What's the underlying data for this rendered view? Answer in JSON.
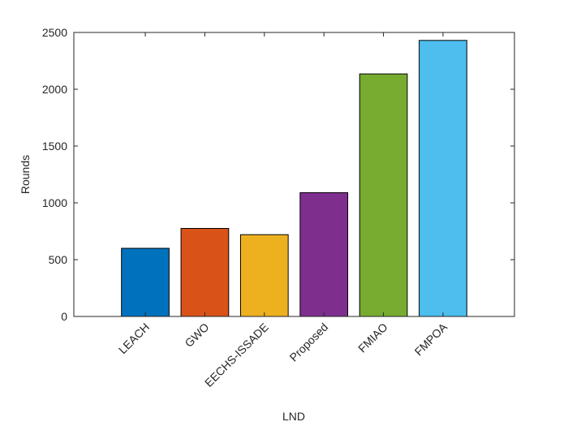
{
  "chart_data": {
    "type": "bar",
    "xlabel": "LND",
    "ylabel": "Rounds",
    "categories": [
      "LEACH",
      "GWO",
      "EECHS-ISSADE",
      "Proposed",
      "FMIAO",
      "FMPOA"
    ],
    "values": [
      600,
      775,
      720,
      1090,
      2135,
      2430
    ],
    "colors": [
      "#0072bd",
      "#d95319",
      "#edb120",
      "#7e2f8e",
      "#77ac30",
      "#4dbeee"
    ],
    "ylim": [
      0,
      2500
    ],
    "yticks": [
      0,
      500,
      1000,
      1500,
      2000,
      2500
    ]
  }
}
